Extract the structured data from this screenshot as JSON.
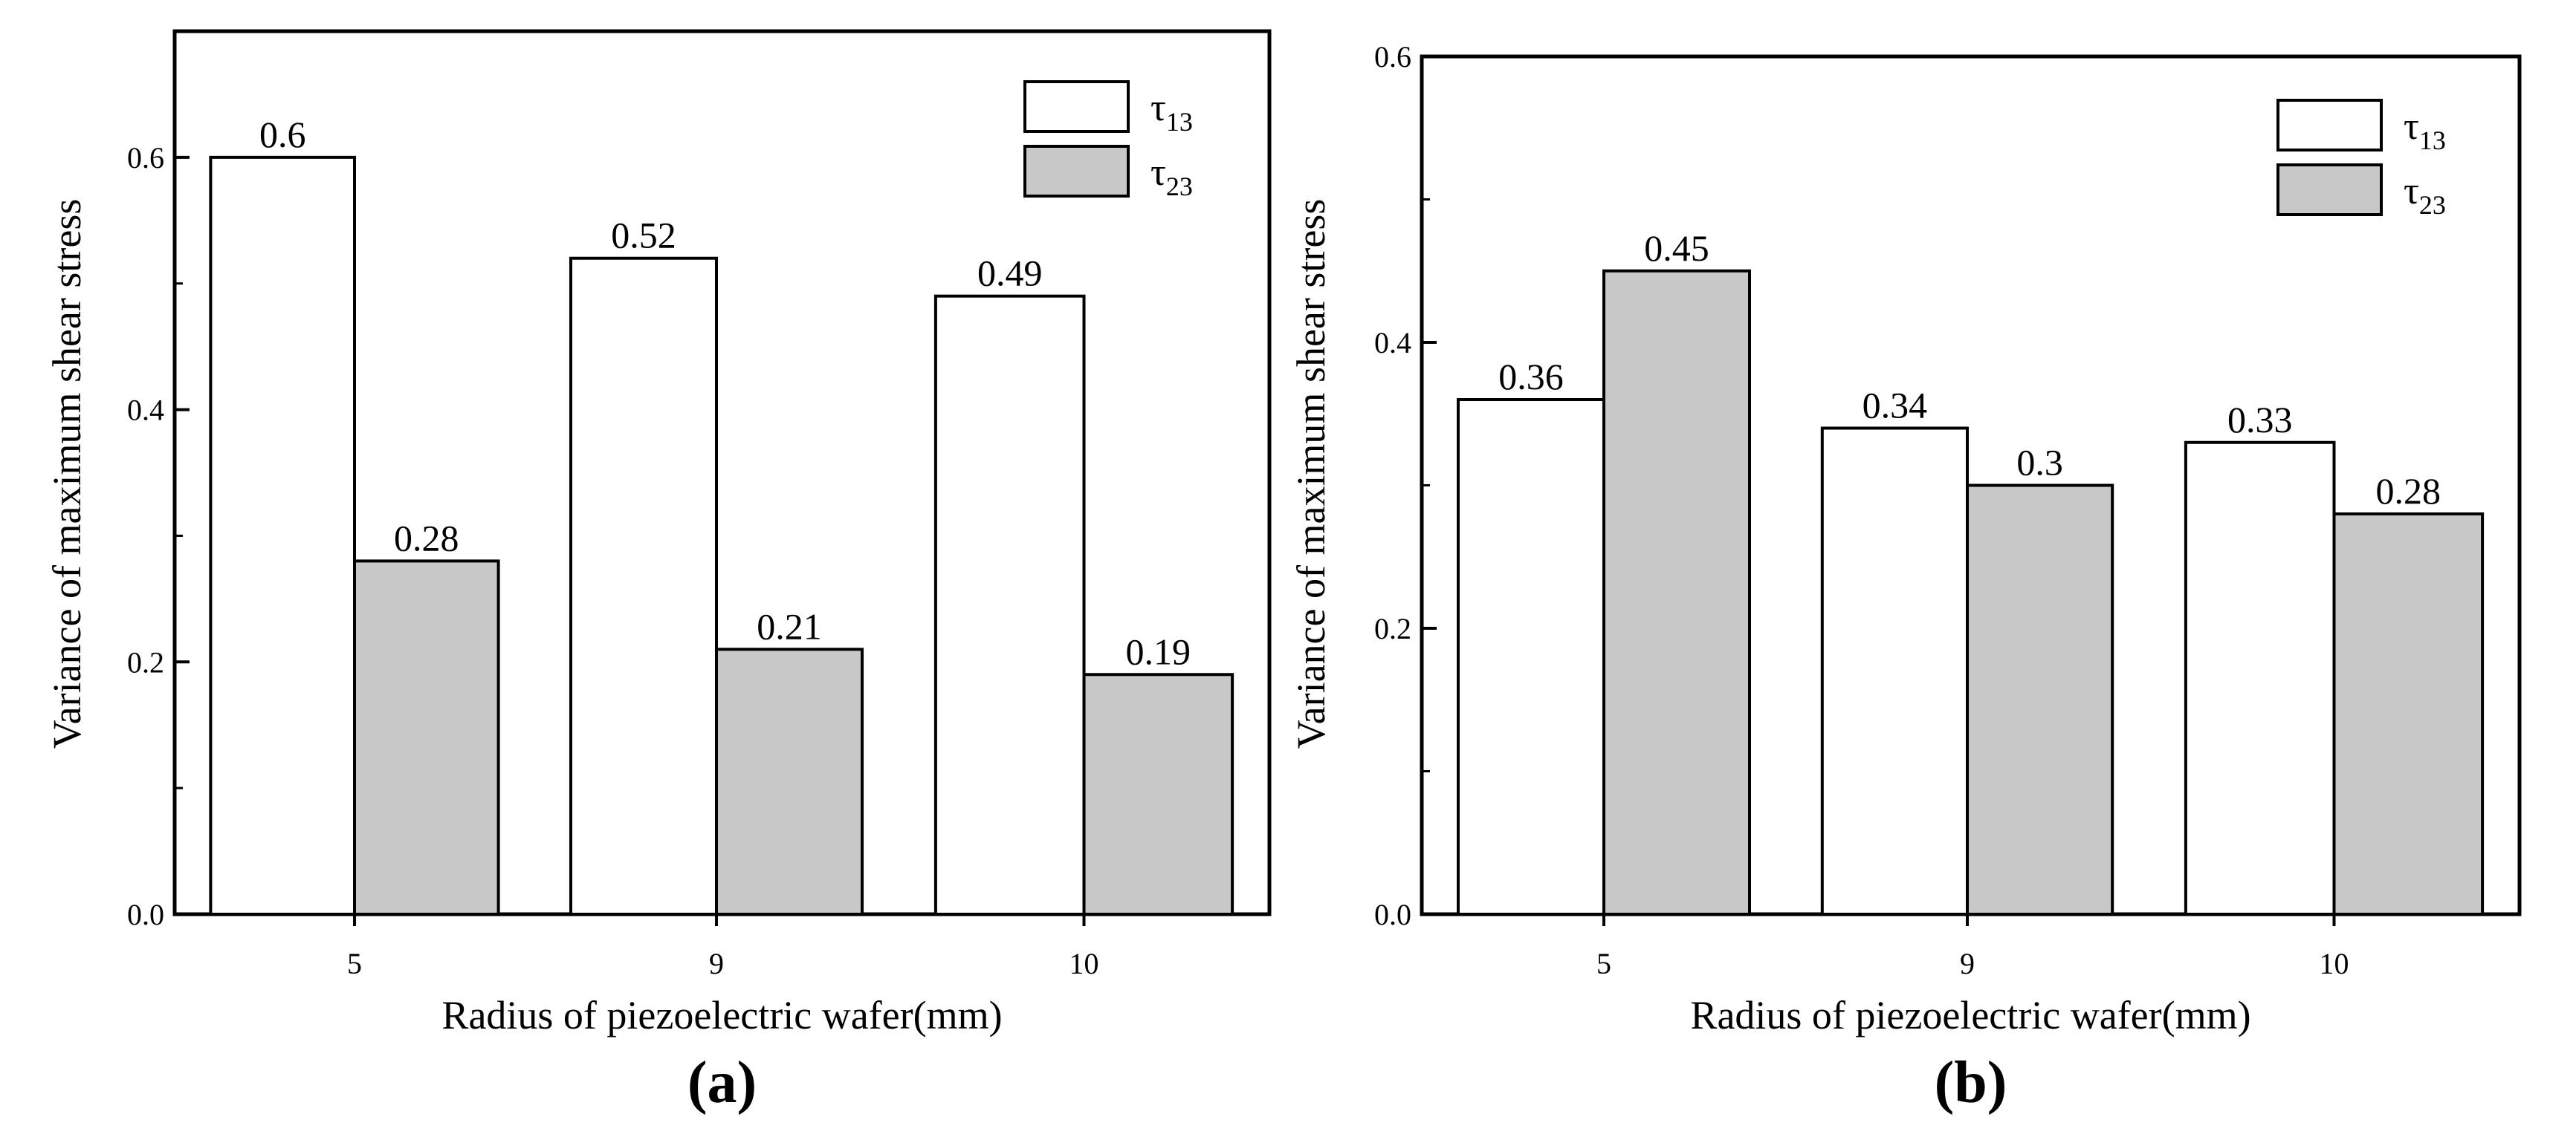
{
  "chart_data": [
    {
      "type": "bar",
      "panel_label": "(a)",
      "categories": [
        "5",
        "9",
        "10"
      ],
      "series": [
        {
          "name": "τ13",
          "symbol": "τ",
          "subscript": "13",
          "color": "#ffffff",
          "values": [
            0.6,
            0.52,
            0.49
          ]
        },
        {
          "name": "τ23",
          "symbol": "τ",
          "subscript": "23",
          "color": "#c8c8c8",
          "values": [
            0.28,
            0.21,
            0.19
          ]
        }
      ],
      "value_labels": [
        [
          "0.6",
          "0.52",
          "0.49"
        ],
        [
          "0.28",
          "0.21",
          "0.19"
        ]
      ],
      "xlabel": "Radius of piezoelectric wafer(mm)",
      "ylabel": "Variance of maximum shear stress",
      "ylim": [
        0,
        0.7
      ],
      "yticks": [
        0.0,
        0.2,
        0.4,
        0.6
      ],
      "ytick_labels": [
        "0.0",
        "0.2",
        "0.4",
        "0.6"
      ],
      "legend_position": "top-right"
    },
    {
      "type": "bar",
      "panel_label": "(b)",
      "categories": [
        "5",
        "9",
        "10"
      ],
      "series": [
        {
          "name": "τ13",
          "symbol": "τ",
          "subscript": "13",
          "color": "#ffffff",
          "values": [
            0.36,
            0.34,
            0.33
          ]
        },
        {
          "name": "τ23",
          "symbol": "τ",
          "subscript": "23",
          "color": "#c8c8c8",
          "values": [
            0.45,
            0.3,
            0.28
          ]
        }
      ],
      "value_labels": [
        [
          "0.36",
          "0.34",
          "0.33"
        ],
        [
          "0.45",
          "0.3",
          "0.28"
        ]
      ],
      "xlabel": "Radius of piezoelectric wafer(mm)",
      "ylabel": "Variance of maximum shear stress",
      "ylim": [
        0,
        0.6
      ],
      "yticks": [
        0.0,
        0.2,
        0.4,
        0.6
      ],
      "ytick_labels": [
        "0.0",
        "0.2",
        "0.4",
        "0.6"
      ],
      "legend_position": "top-right"
    }
  ]
}
